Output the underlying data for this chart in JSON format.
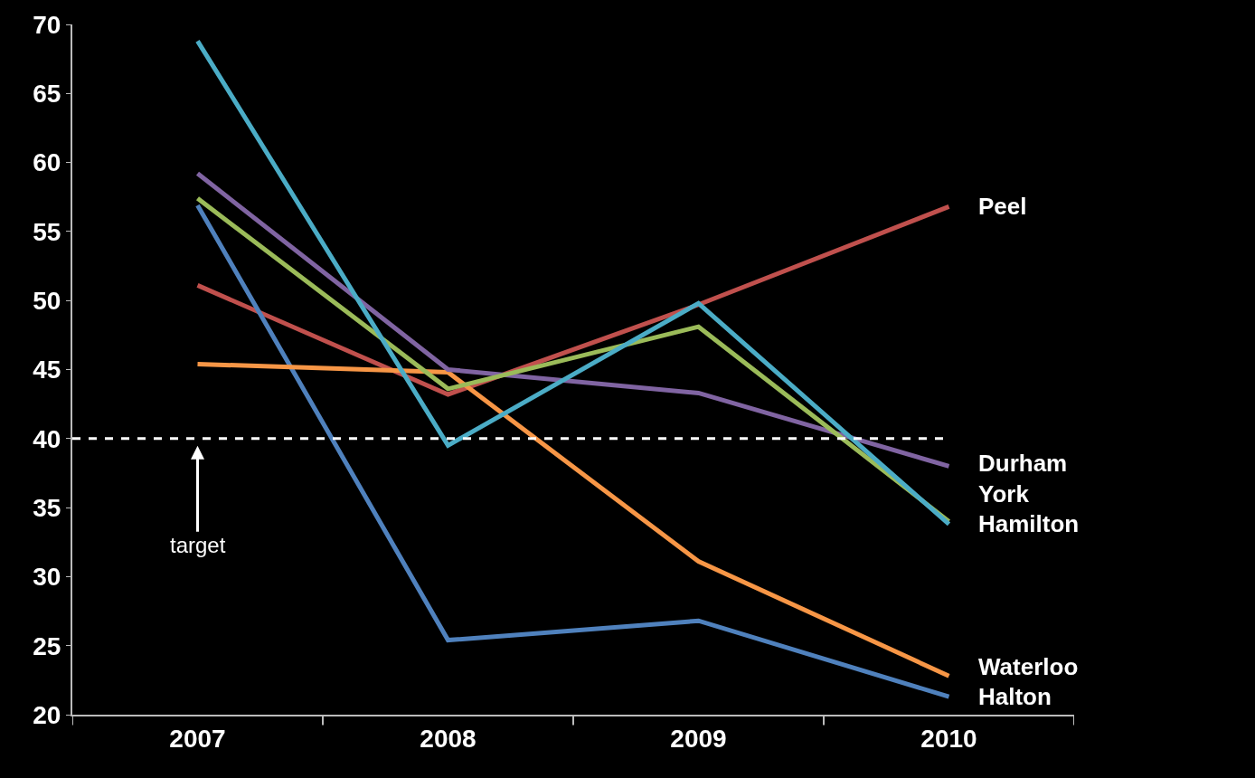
{
  "chart_data": {
    "type": "line",
    "categories": [
      "2007",
      "2008",
      "2009",
      "2010"
    ],
    "series": [
      {
        "name": "Peel",
        "color": "#c0504d",
        "values": [
          51.1,
          43.2,
          49.7,
          56.8
        ]
      },
      {
        "name": "Halton",
        "color": "#4f81bd",
        "values": [
          56.9,
          25.4,
          26.8,
          21.3
        ]
      },
      {
        "name": "Waterloo",
        "color": "#f79646",
        "values": [
          45.4,
          44.8,
          31.1,
          22.8
        ]
      },
      {
        "name": "Durham",
        "color": "#8064a2",
        "values": [
          59.2,
          45.0,
          43.3,
          38.0
        ]
      },
      {
        "name": "York",
        "color": "#9bbb59",
        "values": [
          57.4,
          43.6,
          48.1,
          34.0
        ]
      },
      {
        "name": "Hamilton",
        "color": "#4bacc6",
        "values": [
          68.8,
          39.5,
          49.8,
          33.8
        ]
      }
    ],
    "ylim": [
      20,
      70
    ],
    "yticks": [
      20,
      25,
      30,
      35,
      40,
      45,
      50,
      55,
      60,
      65,
      70
    ],
    "ref_lines": [
      {
        "axis": "y",
        "value": 40,
        "label": "target",
        "color": "#ffffff",
        "line_style": "dashed"
      }
    ],
    "grid": false,
    "legend": false,
    "marker": "none",
    "line_style": "solid"
  }
}
